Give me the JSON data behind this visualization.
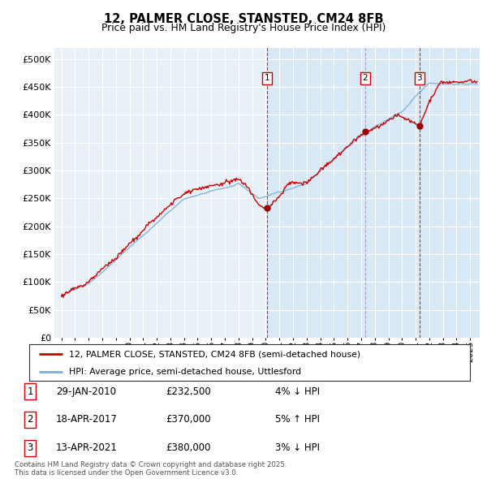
{
  "title": "12, PALMER CLOSE, STANSTED, CM24 8FB",
  "subtitle": "Price paid vs. HM Land Registry's House Price Index (HPI)",
  "legend_label_red": "12, PALMER CLOSE, STANSTED, CM24 8FB (semi-detached house)",
  "legend_label_blue": "HPI: Average price, semi-detached house, Uttlesford",
  "footer": "Contains HM Land Registry data © Crown copyright and database right 2025.\nThis data is licensed under the Open Government Licence v3.0.",
  "transactions": [
    {
      "num": 1,
      "date": "29-JAN-2010",
      "price": "£232,500",
      "pct": "4%",
      "dir": "↓",
      "year": 2010.08,
      "price_val": 232500,
      "line_color": "#cc0000",
      "line_style": "--"
    },
    {
      "num": 2,
      "date": "18-APR-2017",
      "price": "£370,000",
      "pct": "5%",
      "dir": "↑",
      "year": 2017.29,
      "price_val": 370000,
      "line_color": "#aaaacc",
      "line_style": "--"
    },
    {
      "num": 3,
      "date": "13-APR-2021",
      "price": "£380,000",
      "pct": "3%",
      "dir": "↓",
      "year": 2021.29,
      "price_val": 380000,
      "line_color": "#cc0000",
      "line_style": "--"
    }
  ],
  "shade_from_year": 2010.08,
  "xlim_year_start": 1994.5,
  "xlim_year_end": 2025.7,
  "ylim_bottom": 0,
  "ylim_top": 520000,
  "yticks": [
    0,
    50000,
    100000,
    150000,
    200000,
    250000,
    300000,
    350000,
    400000,
    450000,
    500000
  ],
  "xticks": [
    1995,
    1996,
    1997,
    1998,
    1999,
    2000,
    2001,
    2002,
    2003,
    2004,
    2005,
    2006,
    2007,
    2008,
    2009,
    2010,
    2011,
    2012,
    2013,
    2014,
    2015,
    2016,
    2017,
    2018,
    2019,
    2020,
    2021,
    2022,
    2023,
    2024,
    2025
  ],
  "red_color": "#cc0000",
  "blue_color": "#7aaddb",
  "shade_color": "#d8e8f5",
  "background_plot": "#e8f0f8",
  "background_fig": "#ffffff",
  "grid_color": "#ffffff"
}
